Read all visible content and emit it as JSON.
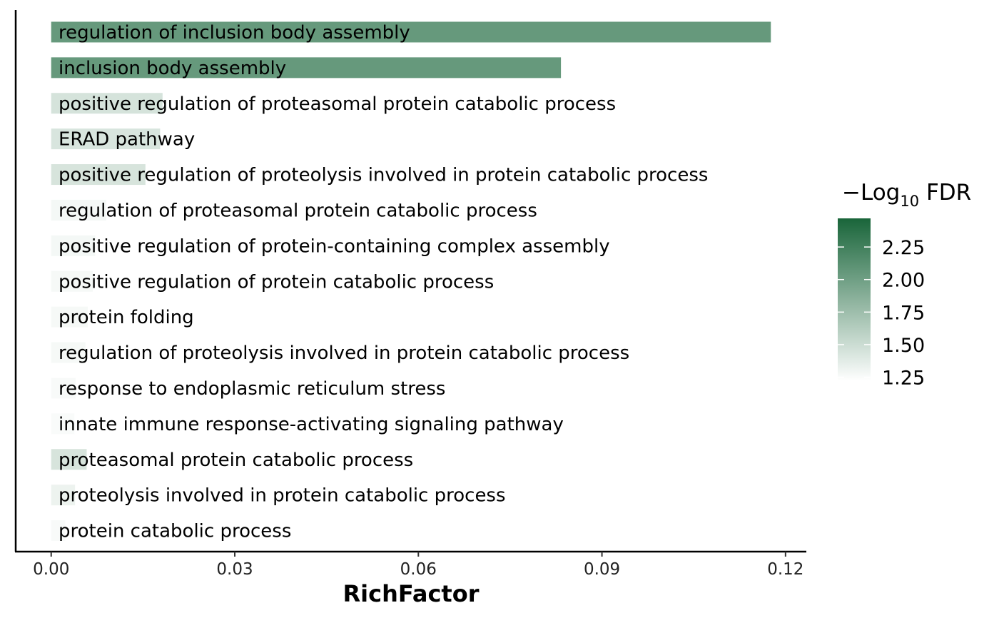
{
  "chart_data": {
    "type": "bar",
    "orientation": "horizontal",
    "xlabel": "RichFactor",
    "ylabel": "",
    "xlim": [
      -0.0058,
      0.1234
    ],
    "x_ticks": [
      0.0,
      0.03,
      0.06,
      0.09,
      0.12
    ],
    "x_tick_labels": [
      "0.00",
      "0.03",
      "0.06",
      "0.09",
      "0.12"
    ],
    "grid": false,
    "categories": [
      "regulation of inclusion body assembly",
      "inclusion body assembly",
      "positive regulation of proteasomal protein catabolic process",
      "ERAD pathway",
      "positive regulation of proteolysis involved in protein catabolic process",
      "regulation of proteasomal protein catabolic process",
      "positive regulation of protein-containing complex assembly",
      "positive regulation of protein catabolic process",
      "protein folding",
      "regulation of proteolysis involved in protein catabolic process",
      "response to endoplasmic reticulum stress",
      "innate immune response-activating signaling pathway",
      "proteasomal protein catabolic process",
      "proteolysis involved in protein catabolic process",
      "protein catabolic process"
    ],
    "values": [
      0.1176,
      0.0833,
      0.0182,
      0.0178,
      0.0154,
      0.009,
      0.0072,
      0.0068,
      0.006,
      0.0056,
      0.004,
      0.0038,
      0.0058,
      0.0039,
      0.0023
    ],
    "color_values": [
      2.05,
      2.05,
      1.45,
      1.43,
      1.44,
      1.28,
      1.28,
      1.27,
      1.27,
      1.27,
      1.26,
      1.25,
      1.44,
      1.32,
      1.26
    ],
    "legend": {
      "title_prefix": "−Log",
      "title_sub": "10",
      "title_suffix": " FDR",
      "position": "right",
      "range": [
        1.22,
        2.47
      ],
      "ticks": [
        2.25,
        2.0,
        1.75,
        1.5,
        1.25
      ],
      "tick_labels": [
        "2.25",
        "2.00",
        "1.75",
        "1.50",
        "1.25"
      ],
      "color_low": "#ffffff",
      "color_high": "#19653a"
    }
  }
}
